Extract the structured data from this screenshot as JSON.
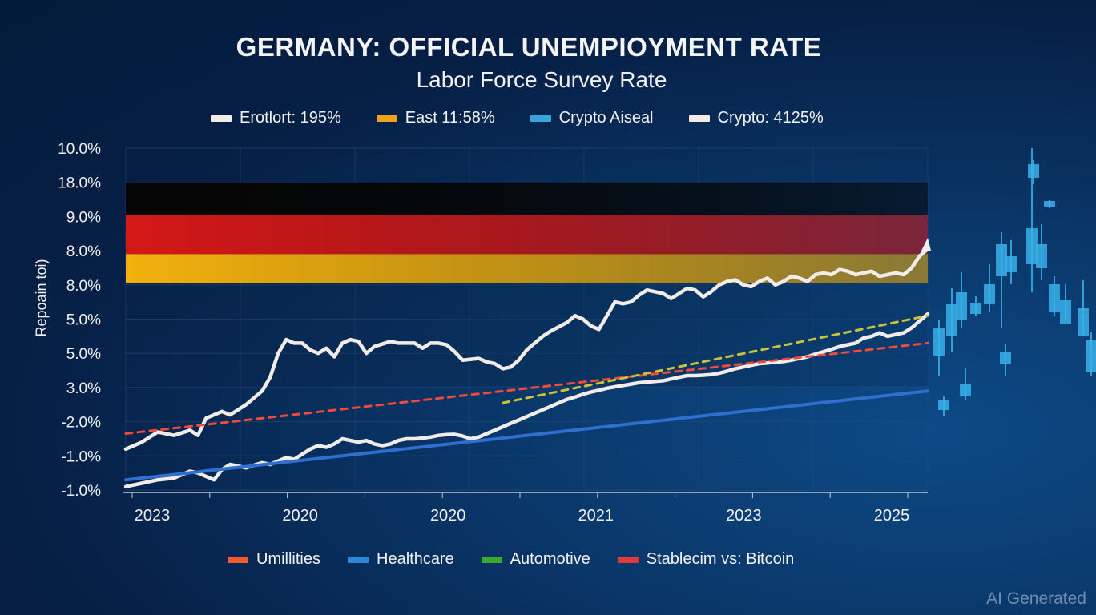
{
  "chart_data": {
    "type": "line",
    "title": "GERMANY: OFFICIAL UNEMPIOYMENT RATE",
    "subtitle": "Labor Force Survey Rate",
    "ylabel": "Repoain toi)",
    "xlabel": "",
    "y_tick_labels": [
      "10.0%",
      "18.0%",
      "9.0%",
      "8.0%",
      "8.0%",
      "5.0%",
      "5.0%",
      "3.0%",
      "-2.0%",
      "-1.0%",
      "-1.0%"
    ],
    "x_tick_labels": [
      "2023",
      "2020",
      "2020",
      "2021",
      "2023",
      "2025"
    ],
    "x_range": [
      0,
      100
    ],
    "y_range": [
      0,
      10
    ],
    "grid": true,
    "background_bands": [
      {
        "name": "black",
        "color": "#050505",
        "y_from": 8.05,
        "y_to": 9.0
      },
      {
        "name": "red",
        "color": "#d41818",
        "y_from": 6.9,
        "y_to": 8.05
      },
      {
        "name": "gold",
        "color": "#f2b10e",
        "y_from": 6.05,
        "y_to": 6.9
      }
    ],
    "legend_top": [
      {
        "label": "Erotlort: 195%",
        "color": "#f2ece4"
      },
      {
        "label": "East 11:58%",
        "color": "#f0a11c"
      },
      {
        "label": "Crypto Aiseal",
        "color": "#3aa3dc"
      },
      {
        "label": "Crypto: 4125%",
        "color": "#f2ece4"
      }
    ],
    "legend_bottom": [
      {
        "label": "Umillities",
        "color": "#f25a32"
      },
      {
        "label": "Healthcare",
        "color": "#2f86d6"
      },
      {
        "label": "Automotive",
        "color": "#3aa82c"
      },
      {
        "label": "Stablecim vs: Bitcoin",
        "color": "#e0383c"
      }
    ],
    "series": [
      {
        "name": "Upper white line",
        "color": "#f2ece8",
        "x": [
          0,
          2,
          4,
          6,
          8,
          9,
          10,
          12,
          13,
          15,
          16,
          17,
          18,
          19,
          20,
          21,
          22,
          23,
          24,
          25,
          26,
          27,
          28,
          29,
          30,
          31,
          33,
          34,
          36,
          37,
          38,
          39,
          40,
          41,
          42,
          44,
          45,
          46,
          47,
          48,
          49,
          50,
          51,
          52,
          53,
          55,
          56,
          57,
          58,
          59,
          60,
          61,
          62,
          63,
          64,
          65,
          67,
          68,
          69,
          70,
          71,
          72,
          73,
          74,
          75,
          76,
          77,
          78,
          79,
          80,
          81,
          82,
          83,
          84,
          85,
          86,
          87,
          88,
          89,
          90,
          91,
          92,
          93,
          94,
          95,
          96,
          97,
          98,
          99,
          100
        ],
        "y": [
          1.2,
          1.4,
          1.7,
          1.6,
          1.75,
          1.6,
          2.1,
          2.3,
          2.2,
          2.5,
          2.7,
          2.9,
          3.3,
          4.0,
          4.4,
          4.3,
          4.3,
          4.1,
          4.0,
          4.15,
          3.9,
          4.3,
          4.4,
          4.35,
          4.0,
          4.2,
          4.35,
          4.3,
          4.3,
          4.15,
          4.3,
          4.3,
          4.25,
          4.05,
          3.8,
          3.85,
          3.75,
          3.7,
          3.55,
          3.6,
          3.8,
          4.1,
          4.3,
          4.5,
          4.65,
          4.9,
          5.1,
          5.0,
          4.8,
          4.7,
          5.1,
          5.5,
          5.45,
          5.5,
          5.7,
          5.85,
          5.75,
          5.6,
          5.75,
          5.9,
          5.85,
          5.65,
          5.8,
          6.0,
          6.1,
          6.15,
          6.0,
          5.95,
          6.1,
          6.2,
          6.0,
          6.1,
          6.25,
          6.2,
          6.1,
          6.3,
          6.35,
          6.3,
          6.45,
          6.4,
          6.3,
          6.35,
          6.4,
          6.25,
          6.3,
          6.35,
          6.3,
          6.5,
          6.85,
          7.05
        ]
      },
      {
        "name": "Lower white line",
        "color": "#f2ece8",
        "x": [
          0,
          2,
          4,
          6,
          8,
          9,
          10,
          11,
          12,
          13,
          14,
          15,
          17,
          18,
          19,
          20,
          21,
          22,
          23,
          24,
          25,
          26,
          27,
          28,
          29,
          30,
          31,
          32,
          33,
          34,
          35,
          36,
          37,
          38,
          39,
          40,
          41,
          42,
          43,
          44,
          45,
          46,
          47,
          48,
          49,
          50,
          51,
          52,
          53,
          54,
          55,
          56,
          57,
          58,
          59,
          60,
          61,
          62,
          63,
          64,
          65,
          66,
          67,
          68,
          69,
          70,
          71,
          72,
          73,
          74,
          75,
          76,
          77,
          78,
          79,
          80,
          81,
          82,
          83,
          84,
          85,
          86,
          87,
          88,
          89,
          90,
          91,
          92,
          93,
          94,
          95,
          96,
          97,
          98,
          99,
          100
        ],
        "y": [
          0.1,
          0.2,
          0.3,
          0.35,
          0.55,
          0.5,
          0.4,
          0.3,
          0.6,
          0.75,
          0.7,
          0.65,
          0.8,
          0.75,
          0.85,
          0.95,
          0.9,
          1.05,
          1.2,
          1.3,
          1.25,
          1.35,
          1.5,
          1.45,
          1.4,
          1.45,
          1.35,
          1.3,
          1.35,
          1.45,
          1.5,
          1.5,
          1.52,
          1.55,
          1.6,
          1.62,
          1.63,
          1.58,
          1.5,
          1.55,
          1.65,
          1.75,
          1.85,
          1.95,
          2.05,
          2.15,
          2.25,
          2.35,
          2.45,
          2.55,
          2.65,
          2.72,
          2.8,
          2.87,
          2.92,
          2.98,
          3.02,
          3.06,
          3.1,
          3.14,
          3.16,
          3.18,
          3.2,
          3.25,
          3.3,
          3.35,
          3.35,
          3.36,
          3.38,
          3.42,
          3.48,
          3.55,
          3.6,
          3.65,
          3.7,
          3.72,
          3.74,
          3.76,
          3.8,
          3.85,
          3.9,
          3.98,
          4.05,
          4.12,
          4.2,
          4.25,
          4.3,
          4.45,
          4.5,
          4.6,
          4.5,
          4.55,
          4.6,
          4.75,
          4.95,
          5.15
        ]
      },
      {
        "name": "Blue trend line",
        "color": "#2f6fd0",
        "x": [
          0,
          100
        ],
        "y": [
          0.3,
          2.9
        ]
      },
      {
        "name": "Red dashed trend",
        "color": "#ef4a3a",
        "x": [
          0,
          100
        ],
        "y": [
          1.65,
          4.3
        ]
      },
      {
        "name": "Yellow dashed trend",
        "color": "#c9c23a",
        "x": [
          47,
          100
        ],
        "y": [
          2.55,
          5.1
        ]
      }
    ],
    "arrow_end": {
      "x": 100,
      "y": 7.05
    }
  },
  "watermark": "AI Generated"
}
